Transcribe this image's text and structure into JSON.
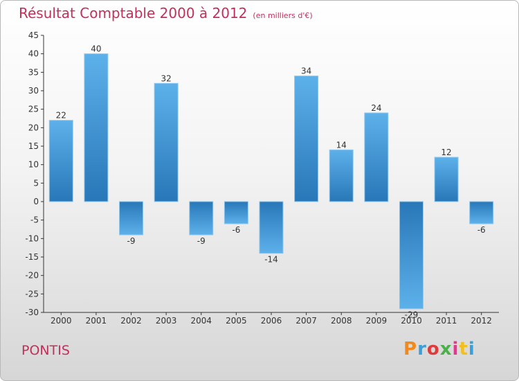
{
  "header": {
    "title": "Résultat Comptable 2000 à 2012",
    "subtitle": "(en milliers d'€)"
  },
  "footer": {
    "town": "PONTIS",
    "logo_text": "Proxiti",
    "logo_colors": [
      "#f08a1c",
      "#3aa0d8",
      "#e03a3a",
      "#4ab04a",
      "#e03a8a",
      "#f0c020",
      "#3aa0d8"
    ]
  },
  "chart_data": {
    "type": "bar",
    "title": "Résultat Comptable 2000 à 2012",
    "xlabel": "",
    "ylabel": "",
    "categories": [
      "2000",
      "2001",
      "2002",
      "2003",
      "2004",
      "2005",
      "2006",
      "2007",
      "2008",
      "2009",
      "2010",
      "2011",
      "2012"
    ],
    "values": [
      22,
      40,
      -9,
      32,
      -9,
      -6,
      -14,
      34,
      14,
      24,
      -29,
      12,
      -6
    ],
    "ylim": [
      -30,
      45
    ],
    "yticks": [
      45,
      40,
      35,
      30,
      25,
      20,
      15,
      10,
      5,
      0,
      -5,
      -10,
      -15,
      -20,
      -25,
      -30
    ],
    "grid": false,
    "bar_color": "#3a8fd0"
  }
}
